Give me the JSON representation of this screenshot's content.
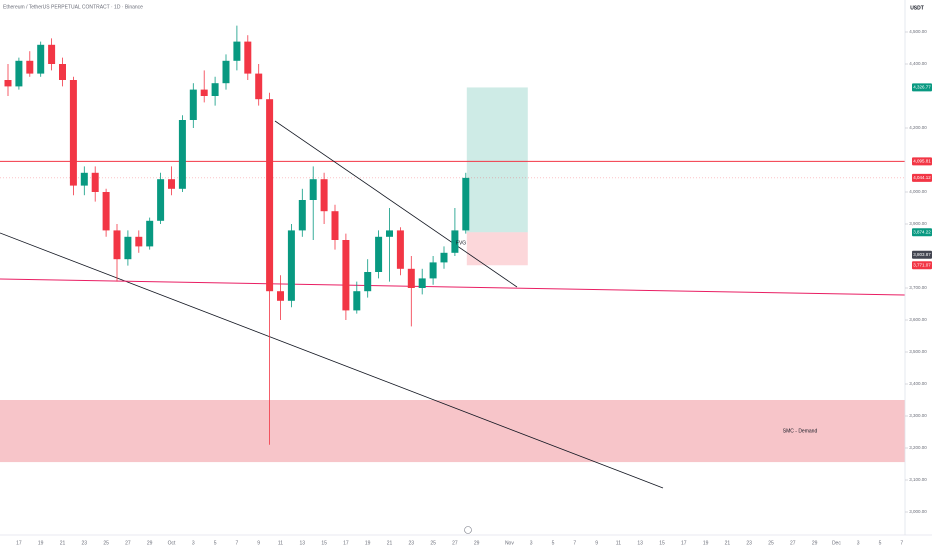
{
  "chart_data": {
    "type": "candlestick",
    "title": "Ethereum / TetherUS PERPETUAL CONTRACT · 1D · Binance",
    "y_axis_label": "USDT",
    "categories": [
      null,
      "17",
      null,
      "19",
      null,
      "21",
      null,
      "23",
      null,
      "25",
      null,
      "27",
      null,
      "29",
      null,
      "Oct",
      null,
      "3",
      null,
      "5",
      null,
      "7",
      null,
      "9",
      null,
      "11",
      null,
      "13",
      null,
      "15",
      null,
      "17",
      null,
      "19",
      null,
      "21",
      null,
      "23",
      null,
      "25",
      null,
      "27",
      null,
      "29",
      null,
      null,
      "Nov",
      null,
      "3",
      null,
      "5",
      null,
      "7",
      null,
      "9",
      null,
      "11",
      null,
      "13",
      null,
      "15",
      null,
      "17",
      null,
      "19",
      null,
      "21",
      null,
      "23",
      null,
      "25",
      null,
      "27",
      null,
      "29",
      null,
      "Dec",
      null,
      "3",
      null,
      "5",
      null,
      "7"
    ],
    "open": [
      4350,
      4330,
      4410,
      4370,
      4460,
      4400,
      4350,
      4020,
      4060,
      4000,
      3880,
      3790,
      3860,
      3830,
      3910,
      4040,
      4010,
      4225,
      4320,
      4300,
      4340,
      4410,
      4470,
      4370,
      4290,
      3690,
      3660,
      3880,
      3975,
      4040,
      3940,
      3850,
      3630,
      3690,
      3750,
      3860,
      3880,
      3760,
      3700,
      3730,
      3780,
      3810,
      3880,
      null,
      null,
      null,
      null,
      null,
      null,
      null,
      null,
      null,
      null,
      null,
      null,
      null,
      null,
      null,
      null,
      null,
      null,
      null,
      null,
      null,
      null,
      null,
      null,
      null,
      null,
      null,
      null,
      null,
      null,
      null,
      null,
      null,
      null,
      null,
      null,
      null,
      null,
      null,
      null
    ],
    "high": [
      4400,
      4420,
      4440,
      4470,
      4480,
      4420,
      4360,
      4080,
      4080,
      4010,
      3900,
      3880,
      3880,
      3920,
      4060,
      4080,
      4240,
      4340,
      4380,
      4360,
      4430,
      4520,
      4490,
      4400,
      4310,
      3740,
      3900,
      4010,
      4080,
      4060,
      3960,
      3870,
      3720,
      3790,
      3880,
      3950,
      3890,
      3800,
      3760,
      3800,
      3830,
      3950,
      4060,
      null,
      null,
      null,
      null,
      null,
      null,
      null,
      null,
      null,
      null,
      null,
      null,
      null,
      null,
      null,
      null,
      null,
      null,
      null,
      null,
      null,
      null,
      null,
      null,
      null,
      null,
      null,
      null,
      null,
      null,
      null,
      null,
      null,
      null,
      null,
      null,
      null,
      null,
      null,
      null
    ],
    "low": [
      4300,
      4320,
      4360,
      4360,
      4380,
      4330,
      3990,
      3990,
      3970,
      3860,
      3720,
      3770,
      3810,
      3820,
      3900,
      3990,
      4000,
      4200,
      4280,
      4270,
      4320,
      4380,
      4350,
      4270,
      3210,
      3600,
      3640,
      3860,
      3850,
      3900,
      3820,
      3600,
      3620,
      3670,
      3730,
      3720,
      3740,
      3580,
      3680,
      3710,
      3760,
      3800,
      3870,
      null,
      null,
      null,
      null,
      null,
      null,
      null,
      null,
      null,
      null,
      null,
      null,
      null,
      null,
      null,
      null,
      null,
      null,
      null,
      null,
      null,
      null,
      null,
      null,
      null,
      null,
      null,
      null,
      null,
      null,
      null,
      null,
      null,
      null,
      null,
      null,
      null,
      null,
      null,
      null
    ],
    "close": [
      4330,
      4410,
      4370,
      4460,
      4400,
      4350,
      4020,
      4060,
      4000,
      3880,
      3790,
      3860,
      3830,
      3910,
      4040,
      4010,
      4225,
      4320,
      4300,
      4340,
      4410,
      4470,
      4370,
      4290,
      3690,
      3660,
      3880,
      3975,
      4040,
      3940,
      3850,
      3630,
      3690,
      3750,
      3860,
      3880,
      3760,
      3700,
      3730,
      3780,
      3810,
      3880,
      4044.12,
      null,
      null,
      null,
      null,
      null,
      null,
      null,
      null,
      null,
      null,
      null,
      null,
      null,
      null,
      null,
      null,
      null,
      null,
      null,
      null,
      null,
      null,
      null,
      null,
      null,
      null,
      null,
      null,
      null,
      null,
      null,
      null,
      null,
      null,
      null,
      null,
      null,
      null,
      null,
      null
    ],
    "up_color": "#089981",
    "down_color": "#f23645",
    "ylim": [
      2900,
      4600
    ],
    "yticks": [
      {
        "value": 3000,
        "label": "3,000.00"
      },
      {
        "value": 3100,
        "label": "3,100.00"
      },
      {
        "value": 3200,
        "label": "3,200.00"
      },
      {
        "value": 3300,
        "label": "3,300.00"
      },
      {
        "value": 3400,
        "label": "3,400.00"
      },
      {
        "value": 3500,
        "label": "3,500.00"
      },
      {
        "value": 3600,
        "label": "3,600.00"
      },
      {
        "value": 3700,
        "label": "3,700.00"
      },
      {
        "value": 3900,
        "label": "3,900.00"
      },
      {
        "value": 4000,
        "label": "4,000.00"
      },
      {
        "value": 4200,
        "label": "4,200.00"
      },
      {
        "value": 4400,
        "label": "4,400.00"
      },
      {
        "value": 4500,
        "label": "4,500.00"
      }
    ],
    "levels": [
      {
        "value": 4095.81,
        "label": "4,095.81",
        "color": "#f23645"
      }
    ],
    "current_price": {
      "value": 4044.12,
      "label": "4,044.12",
      "color": "#f23645"
    },
    "marker": {
      "value": 3803.87,
      "label": "3,803.87",
      "color": "#434651"
    },
    "position": {
      "target": {
        "value": 4326.77,
        "label": "4,326.77",
        "color": "#089981"
      },
      "entry": {
        "value": 3874.22,
        "label": "3,874.22",
        "color": "#089981"
      },
      "stop": {
        "value": 3771.07,
        "label": "3,771.07",
        "color": "#f23645"
      }
    },
    "demand_zone": {
      "label": "SMC - Demand",
      "top": 3350,
      "bottom": 3156,
      "color": "#f7c5c9"
    },
    "fvg_label": "FVG"
  }
}
